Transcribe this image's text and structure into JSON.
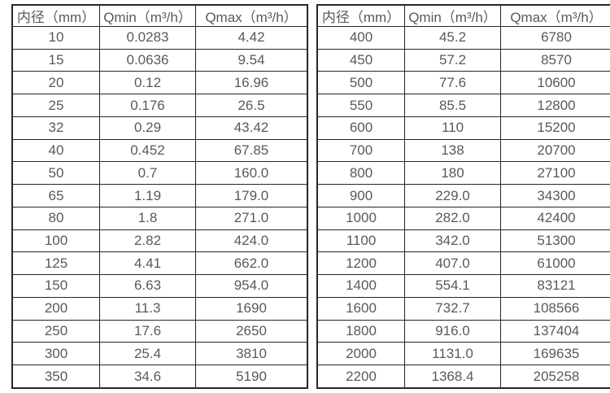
{
  "page": {
    "background_color": "#ffffff",
    "text_color": "#595959",
    "border_color": "#262626"
  },
  "tables": [
    {
      "name": "flow-spec-small-diameters",
      "headers": [
        "内径（mm）",
        "Qmin（m³/h）",
        "Qmax（m³/h）"
      ],
      "rows": [
        [
          "10",
          "0.0283",
          "4.42"
        ],
        [
          "15",
          "0.0636",
          "9.54"
        ],
        [
          "20",
          "0.12",
          "16.96"
        ],
        [
          "25",
          "0.176",
          "26.5"
        ],
        [
          "32",
          "0.29",
          "43.42"
        ],
        [
          "40",
          "0.452",
          "67.85"
        ],
        [
          "50",
          "0.7",
          "160.0"
        ],
        [
          "65",
          "1.19",
          "179.0"
        ],
        [
          "80",
          "1.8",
          "271.0"
        ],
        [
          "100",
          "2.82",
          "424.0"
        ],
        [
          "125",
          "4.41",
          "662.0"
        ],
        [
          "150",
          "6.63",
          "954.0"
        ],
        [
          "200",
          "11.3",
          "1690"
        ],
        [
          "250",
          "17.6",
          "2650"
        ],
        [
          "300",
          "25.4",
          "3810"
        ],
        [
          "350",
          "34.6",
          "5190"
        ]
      ]
    },
    {
      "name": "flow-spec-large-diameters",
      "headers": [
        "内径（mm）",
        "Qmin（m³/h）",
        "Qmax（m³/h）"
      ],
      "rows": [
        [
          "400",
          "45.2",
          "6780"
        ],
        [
          "450",
          "57.2",
          "8570"
        ],
        [
          "500",
          "77.6",
          "10600"
        ],
        [
          "550",
          "85.5",
          "12800"
        ],
        [
          "600",
          "110",
          "15200"
        ],
        [
          "700",
          "138",
          "20700"
        ],
        [
          "800",
          "180",
          "27100"
        ],
        [
          "900",
          "229.0",
          "34300"
        ],
        [
          "1000",
          "282.0",
          "42400"
        ],
        [
          "1100",
          "342.0",
          "51300"
        ],
        [
          "1200",
          "407.0",
          "61000"
        ],
        [
          "1400",
          "554.1",
          "83121"
        ],
        [
          "1600",
          "732.7",
          "108566"
        ],
        [
          "1800",
          "916.0",
          "137404"
        ],
        [
          "2000",
          "1131.0",
          "169635"
        ],
        [
          "2200",
          "1368.4",
          "205258"
        ]
      ]
    }
  ]
}
